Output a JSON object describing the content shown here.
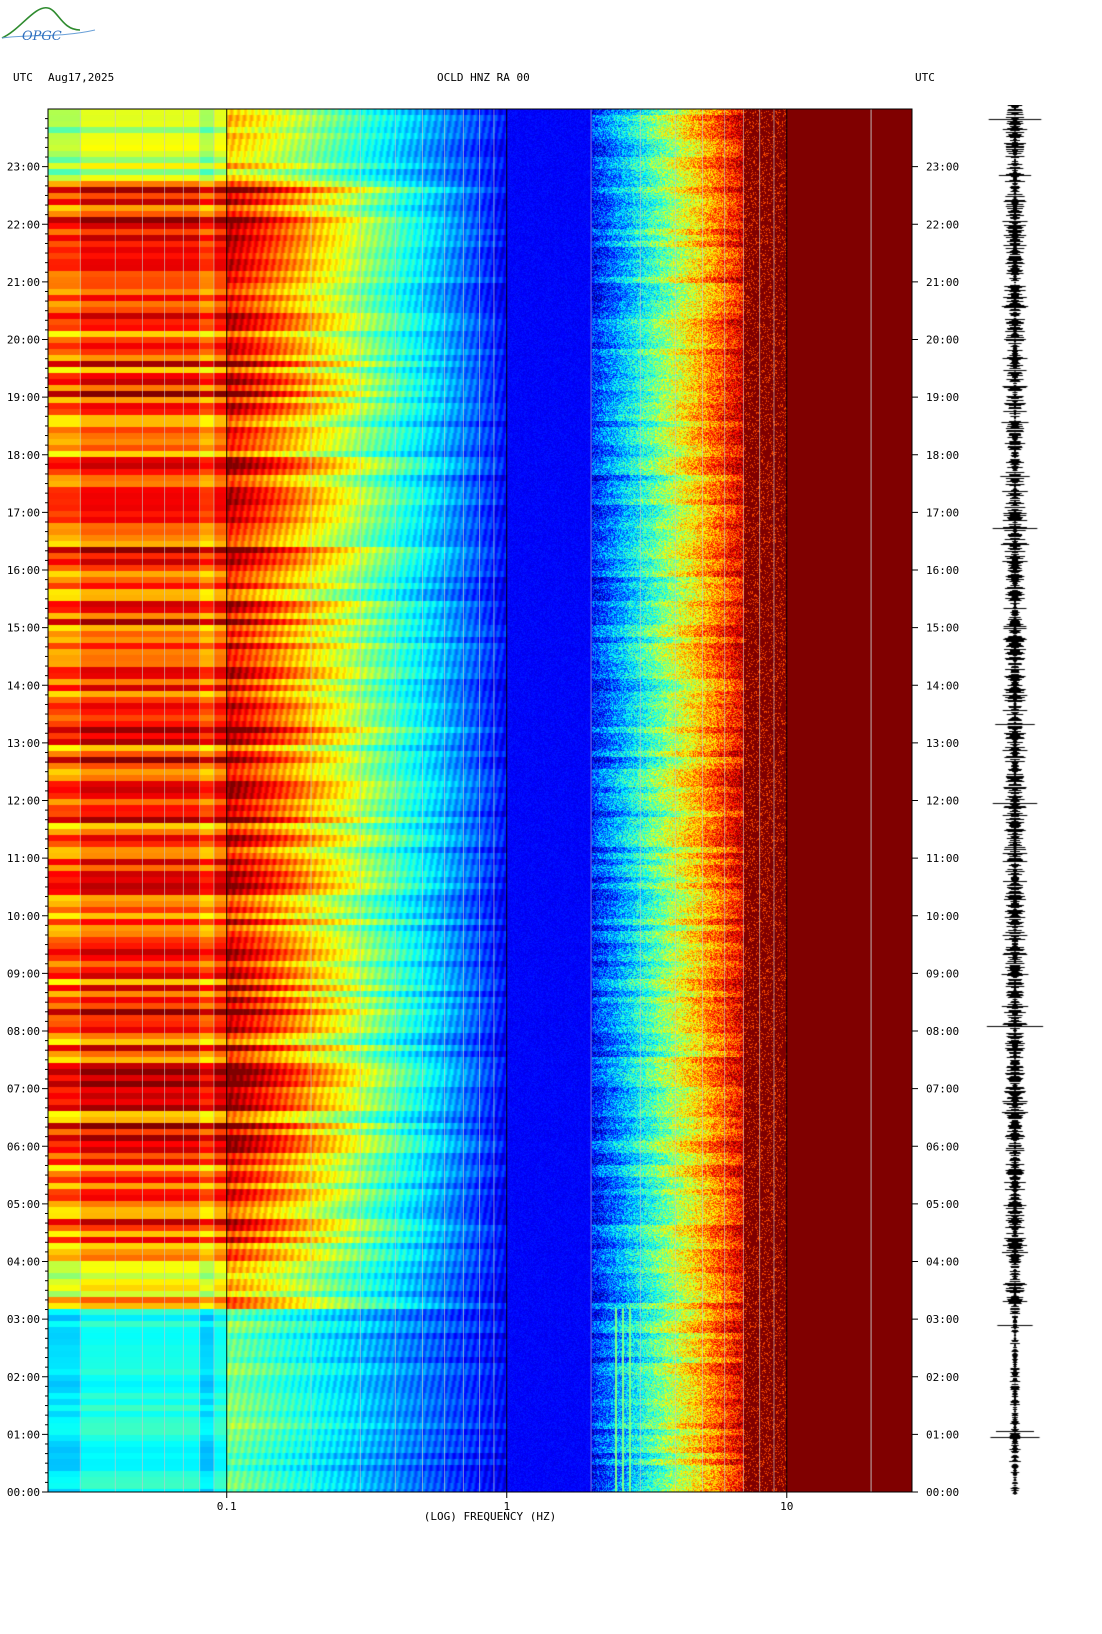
{
  "header": {
    "left_tz": "UTC",
    "date": "Aug17,2025",
    "station": "OCLD HNZ RA 00",
    "right_tz": "UTC"
  },
  "logo_text": "OPGC",
  "colors": {
    "low": "#0000c0",
    "mid_low": "#00b0ff",
    "mid": "#00ffd0",
    "mid_high": "#ffff00",
    "high": "#ff2000",
    "max": "#8b0000",
    "grid": "#c8c8c8"
  },
  "chart_data": {
    "type": "heatmap",
    "title": "OCLD HNZ RA 00",
    "xlabel": "(LOG) FREQUENCY (HZ)",
    "x_scale": "log",
    "xlim": [
      0.023,
      28
    ],
    "x_tick_labels": [
      "0.1",
      "1",
      "10"
    ],
    "x_ticks": [
      0.1,
      1,
      10
    ],
    "ylabel": "UTC",
    "y_tick_labels": [
      "00:00",
      "01:00",
      "02:00",
      "03:00",
      "04:00",
      "05:00",
      "06:00",
      "07:00",
      "08:00",
      "09:00",
      "10:00",
      "11:00",
      "12:00",
      "13:00",
      "14:00",
      "15:00",
      "16:00",
      "17:00",
      "18:00",
      "19:00",
      "20:00",
      "21:00",
      "22:00",
      "23:00"
    ],
    "ylim_hours": [
      0,
      24
    ],
    "colormap": "jet",
    "notes_quiet_period_hours": [
      0,
      3.2
    ],
    "seismogram_panel": true
  }
}
